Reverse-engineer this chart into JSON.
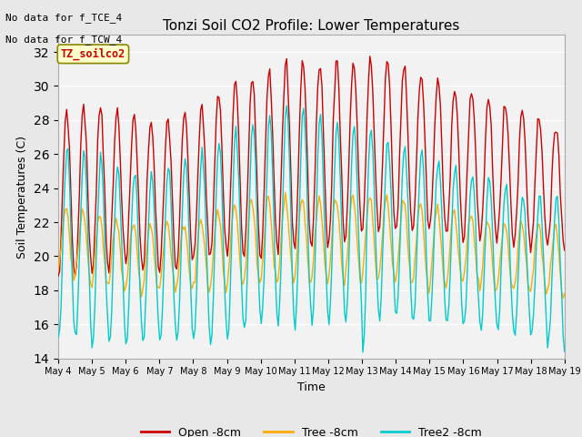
{
  "title": "Tonzi Soil CO2 Profile: Lower Temperatures",
  "xlabel": "Time",
  "ylabel": "Soil Temperatures (C)",
  "ylim": [
    14,
    33
  ],
  "yticks": [
    14,
    16,
    18,
    20,
    22,
    24,
    26,
    28,
    30,
    32
  ],
  "annotation1": "No data for f_TCE_4",
  "annotation2": "No data for f_TCW_4",
  "box_label": "TZ_soilco2",
  "bg_color": "#e8e8e8",
  "plot_bg": "#f2f2f2",
  "n_days": 15,
  "day_labels": [
    "May 4",
    "May 5",
    "May 6",
    "May 7",
    "May 8",
    "May 9",
    "May 10",
    "May 11",
    "May 12",
    "May 13",
    "May 14",
    "May 15",
    "May 16",
    "May 17",
    "May 18",
    "May 19"
  ]
}
